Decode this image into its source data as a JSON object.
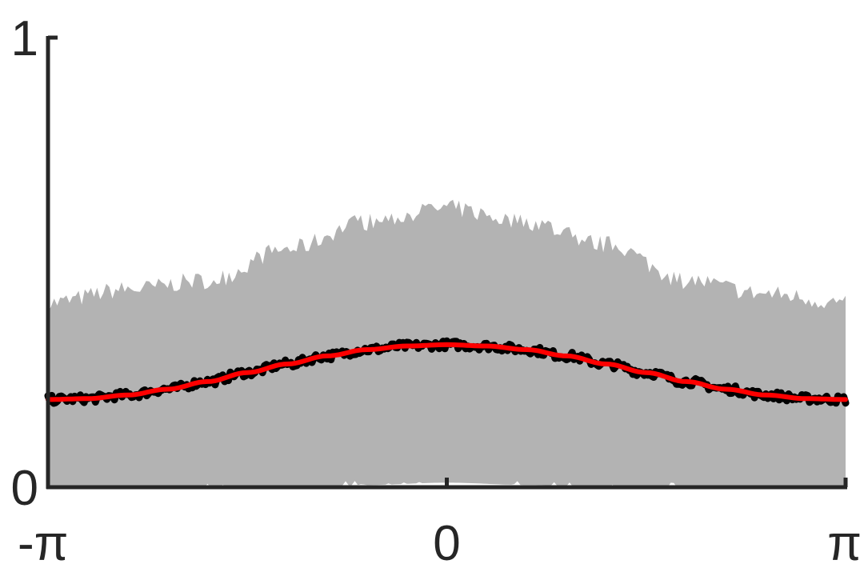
{
  "chart_data": {
    "type": "area",
    "title": "",
    "xlabel": "",
    "ylabel": "",
    "xlim": [
      -3.14159,
      3.14159
    ],
    "ylim": [
      0,
      1
    ],
    "grid": false,
    "x_ticks": [
      {
        "value": -3.14159,
        "label": "-π"
      },
      {
        "value": 0,
        "label": "0"
      },
      {
        "value": 3.14159,
        "label": "π"
      }
    ],
    "y_ticks": [
      {
        "value": 0,
        "label": "0"
      },
      {
        "value": 1,
        "label": "1"
      }
    ],
    "band": {
      "x": [
        -3.14159,
        -2.51327,
        -1.88496,
        -1.25664,
        -0.62832,
        0,
        0.62832,
        1.25664,
        1.88496,
        2.51327,
        3.14159
      ],
      "upper": [
        0.41,
        0.44,
        0.46,
        0.53,
        0.59,
        0.62,
        0.59,
        0.54,
        0.46,
        0.43,
        0.41
      ],
      "lower": [
        0,
        0,
        0,
        0,
        0.005,
        0.01,
        0.005,
        0,
        0,
        0,
        0
      ],
      "color": "#b3b3b3"
    },
    "series": [
      {
        "x": [
          -3.14159,
          -2.82743,
          -2.51327,
          -2.19911,
          -1.88496,
          -1.5708,
          -1.25664,
          -0.94248,
          -0.62832,
          -0.31416,
          0,
          0.31416,
          0.62832,
          0.94248,
          1.25664,
          1.5708,
          1.88496,
          2.19911,
          2.51327,
          2.82743,
          3.14159
        ],
        "values": [
          0.195,
          0.197,
          0.205,
          0.218,
          0.235,
          0.255,
          0.274,
          0.292,
          0.306,
          0.314,
          0.317,
          0.314,
          0.306,
          0.292,
          0.274,
          0.255,
          0.235,
          0.218,
          0.205,
          0.197,
          0.195
        ],
        "color": "#000000",
        "noisy": true
      },
      {
        "x": [
          -3.14159,
          -2.82743,
          -2.51327,
          -2.19911,
          -1.88496,
          -1.5708,
          -1.25664,
          -0.94248,
          -0.62832,
          -0.31416,
          0,
          0.31416,
          0.62832,
          0.94248,
          1.25664,
          1.5708,
          1.88496,
          2.19911,
          2.51327,
          2.82743,
          3.14159
        ],
        "values": [
          0.195,
          0.197,
          0.205,
          0.218,
          0.235,
          0.255,
          0.274,
          0.292,
          0.306,
          0.314,
          0.317,
          0.314,
          0.306,
          0.292,
          0.274,
          0.255,
          0.235,
          0.218,
          0.205,
          0.197,
          0.195
        ],
        "color": "#ff0000",
        "noisy": false
      }
    ],
    "axis_color": "#262626"
  }
}
